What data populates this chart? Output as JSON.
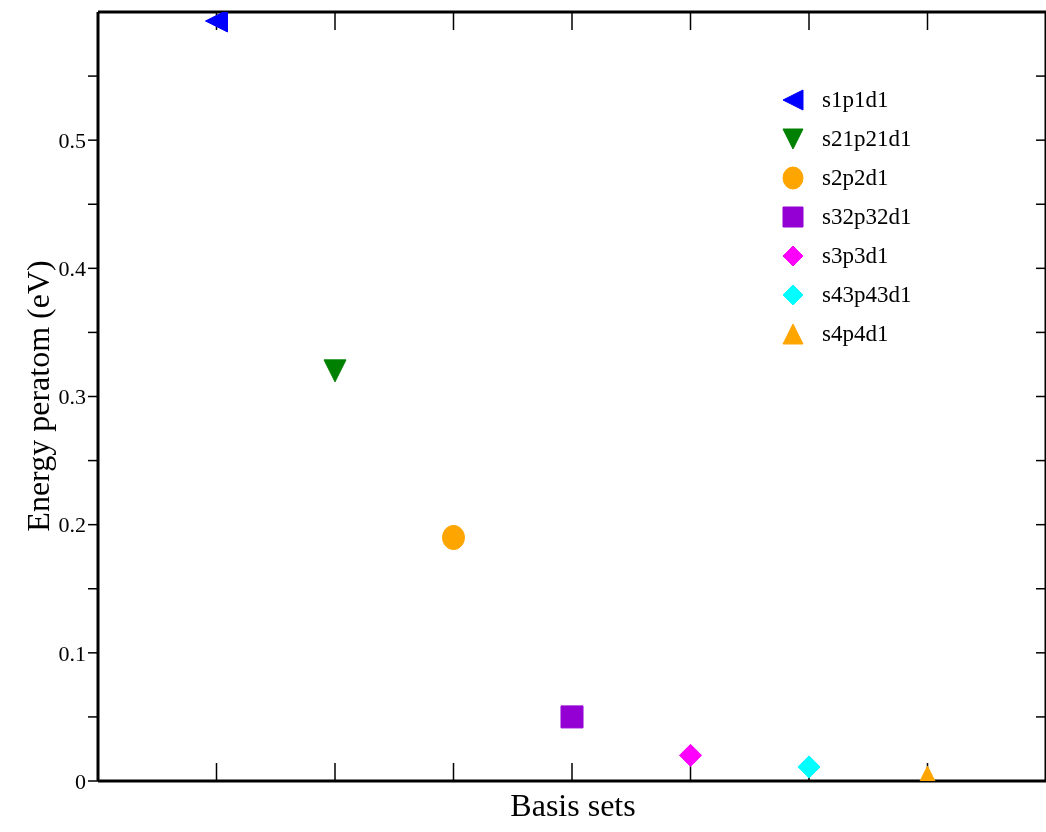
{
  "chart_data": {
    "type": "scatter",
    "xlabel": "Basis sets",
    "ylabel": "Energy peratom (eV)",
    "categories": [
      null,
      null,
      null,
      null,
      null,
      null,
      null
    ],
    "ylim": [
      0,
      0.6
    ],
    "yticks": [
      0,
      {
        "value": 0.05,
        "label": null
      },
      0.1,
      {
        "value": 0.15,
        "label": null
      },
      0.2,
      {
        "value": 0.25,
        "label": null
      },
      0.3,
      {
        "value": 0.35,
        "label": null
      },
      0.4,
      {
        "value": 0.45,
        "label": null
      },
      0.5,
      {
        "value": 0.55,
        "label": null
      }
    ],
    "tick_labels": "y",
    "legend": "top right",
    "series": [
      {
        "name": "s1p1d1",
        "color": "#0000ff",
        "marker": "triangle-left",
        "values": [
          0.593,
          null,
          null,
          null,
          null,
          null,
          null
        ]
      },
      {
        "name": "s21p21d1",
        "color": "#008000",
        "marker": "triangle-down",
        "values": [
          null,
          0.32,
          null,
          null,
          null,
          null,
          null
        ]
      },
      {
        "name": "s2p2d1",
        "color": "#ffa500",
        "marker": "circle",
        "values": [
          null,
          null,
          0.19,
          null,
          null,
          null,
          null
        ]
      },
      {
        "name": "s32p32d1",
        "color": "#9400d3",
        "marker": "square",
        "values": [
          null,
          null,
          null,
          0.05,
          null,
          null,
          null
        ]
      },
      {
        "name": "s3p3d1",
        "color": "#ff00ff",
        "marker": "diamond",
        "values": [
          null,
          null,
          null,
          null,
          0.02,
          null,
          null
        ]
      },
      {
        "name": "s43p43d1",
        "color": "#00ffff",
        "marker": "diamond",
        "values": [
          null,
          null,
          null,
          null,
          null,
          0.011,
          null
        ]
      },
      {
        "name": "s4p4d1",
        "color": "#ffa500",
        "marker": "triangle",
        "values": [
          null,
          null,
          null,
          null,
          null,
          null,
          0.003
        ]
      }
    ]
  }
}
